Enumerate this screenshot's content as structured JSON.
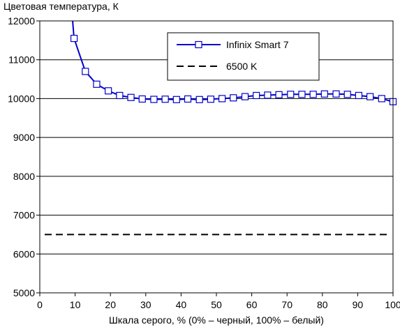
{
  "chart_data": {
    "type": "line",
    "ylabel": "Цветовая температура, К",
    "xlabel": "Шкала серого, % (0% – черный, 100% – белый)",
    "xlim": [
      0,
      100
    ],
    "ylim": [
      5000,
      12000
    ],
    "xticks": [
      0,
      10,
      20,
      30,
      40,
      50,
      60,
      70,
      80,
      90,
      100
    ],
    "yticks": [
      5000,
      6000,
      7000,
      8000,
      9000,
      10000,
      11000,
      12000
    ],
    "grid": "horizontal",
    "legend_position": "top-right",
    "series": [
      {
        "name": "Infinix Smart 7",
        "color": "#0000cc",
        "marker": "square",
        "line_only_start": [
          9.3,
          12000
        ],
        "x": [
          9.7,
          12.9,
          16.1,
          19.4,
          22.6,
          25.8,
          29.0,
          32.3,
          35.5,
          38.7,
          41.9,
          45.2,
          48.4,
          51.6,
          54.8,
          58.1,
          61.3,
          64.5,
          67.7,
          71.0,
          74.2,
          77.4,
          80.6,
          83.9,
          87.1,
          90.3,
          93.5,
          96.8,
          100.0
        ],
        "values": [
          11550,
          10700,
          10370,
          10200,
          10080,
          10030,
          9990,
          9980,
          9985,
          9975,
          9990,
          9975,
          9985,
          10000,
          10020,
          10050,
          10080,
          10090,
          10100,
          10110,
          10110,
          10110,
          10120,
          10120,
          10110,
          10080,
          10050,
          10000,
          9920
        ]
      },
      {
        "name": "6500 K",
        "color": "#000000",
        "style": "dashed",
        "x": [
          0,
          100
        ],
        "values": [
          6500,
          6500
        ]
      }
    ]
  }
}
